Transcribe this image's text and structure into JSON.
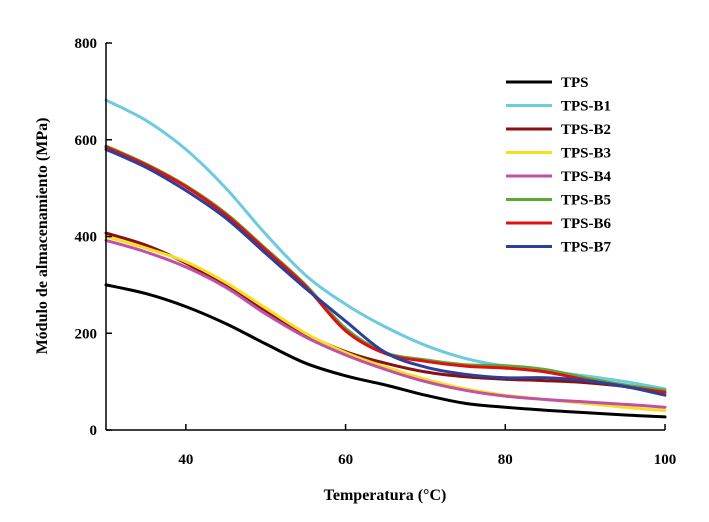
{
  "chart_data": {
    "type": "line",
    "title": "",
    "xlabel": "Temperatura (°C)",
    "ylabel": "Módulo de almacenamiento (MPa)",
    "xlim": [
      30,
      100
    ],
    "ylim": [
      0,
      800
    ],
    "xticks": [
      40,
      60,
      80,
      100
    ],
    "yticks": [
      0,
      200,
      400,
      600,
      800
    ],
    "grid": false,
    "legend_position": "top-right",
    "x": [
      30,
      35,
      40,
      45,
      50,
      55,
      60,
      65,
      70,
      75,
      80,
      85,
      90,
      95,
      100
    ],
    "series": [
      {
        "name": "TPS",
        "color": "#000000",
        "values": [
          300,
          282,
          255,
          220,
          178,
          138,
          112,
          93,
          72,
          55,
          47,
          41,
          36,
          31,
          27
        ]
      },
      {
        "name": "TPS-B1",
        "color": "#6ccbe0",
        "values": [
          682,
          640,
          580,
          500,
          405,
          320,
          260,
          213,
          175,
          148,
          132,
          122,
          112,
          100,
          85
        ]
      },
      {
        "name": "TPS-B2",
        "color": "#8a1010",
        "values": [
          407,
          382,
          345,
          298,
          245,
          198,
          162,
          138,
          120,
          110,
          105,
          102,
          98,
          90,
          78
        ]
      },
      {
        "name": "TPS-B3",
        "color": "#f4e020",
        "values": [
          400,
          376,
          348,
          305,
          252,
          200,
          160,
          130,
          105,
          85,
          72,
          63,
          55,
          47,
          40
        ]
      },
      {
        "name": "TPS-B4",
        "color": "#c050a8",
        "values": [
          392,
          368,
          337,
          295,
          240,
          192,
          155,
          125,
          100,
          82,
          70,
          63,
          58,
          53,
          47
        ]
      },
      {
        "name": "TPS-B5",
        "color": "#5aa83a",
        "values": [
          587,
          550,
          505,
          448,
          375,
          300,
          210,
          160,
          145,
          135,
          133,
          125,
          108,
          93,
          82
        ]
      },
      {
        "name": "TPS-B6",
        "color": "#e01010",
        "values": [
          585,
          548,
          503,
          445,
          372,
          297,
          205,
          158,
          142,
          132,
          128,
          120,
          104,
          90,
          78
        ]
      },
      {
        "name": "TPS-B7",
        "color": "#2c3f9a",
        "values": [
          580,
          543,
          495,
          438,
          365,
          293,
          225,
          160,
          130,
          115,
          108,
          108,
          102,
          90,
          72
        ]
      }
    ]
  }
}
